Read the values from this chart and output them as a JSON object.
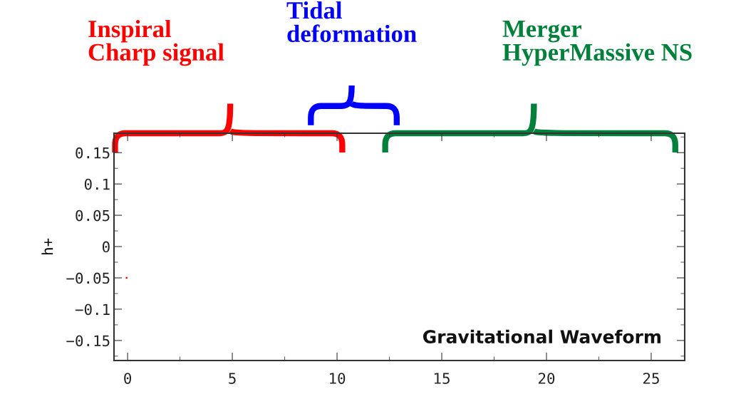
{
  "chart_data": {
    "type": "scatter",
    "ylabel": "h+",
    "x": [
      -0.05
    ],
    "series": [
      {
        "color": "#ff0000",
        "values": [
          -0.05
        ]
      }
    ],
    "xlim": [
      -0.65,
      26.6
    ],
    "ylim": [
      -0.182,
      0.181
    ],
    "xticks": [
      0,
      5,
      10,
      15,
      20,
      25
    ],
    "yticks": [
      -0.15,
      -0.1,
      -0.05,
      0,
      0.05,
      0.1,
      0.15
    ],
    "grid": false,
    "marker": "square",
    "annotations": [
      "Inspiral\nCharp signal",
      "Tidal\ndeformation",
      "Merger\nHyperMassive NS",
      "Gravitational Waveform"
    ]
  }
}
